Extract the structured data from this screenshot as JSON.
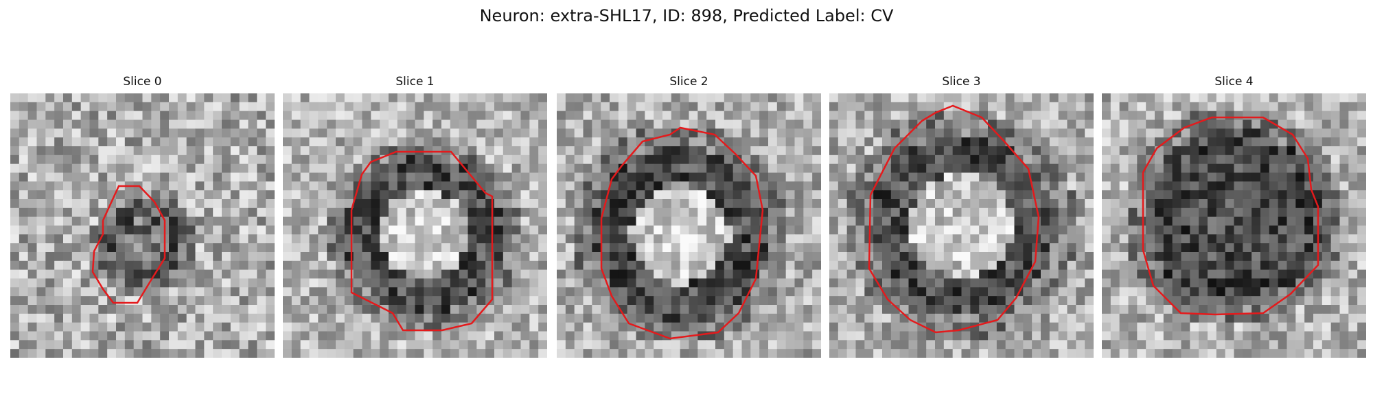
{
  "figure": {
    "title": "Neuron: extra-SHL17, ID: 898, Predicted Label: CV",
    "contour_color": "#e41a1c",
    "colormap": "grayscale"
  },
  "panels": [
    {
      "title": "Slice 0",
      "background": "noise-with-small-dark-spot"
    },
    {
      "title": "Slice 1",
      "background": "dark-ring-bright-center"
    },
    {
      "title": "Slice 2",
      "background": "dark-ring-bright-center"
    },
    {
      "title": "Slice 3",
      "background": "dark-ring-bright-center"
    },
    {
      "title": "Slice 4",
      "background": "dark-filled-cell"
    }
  ]
}
